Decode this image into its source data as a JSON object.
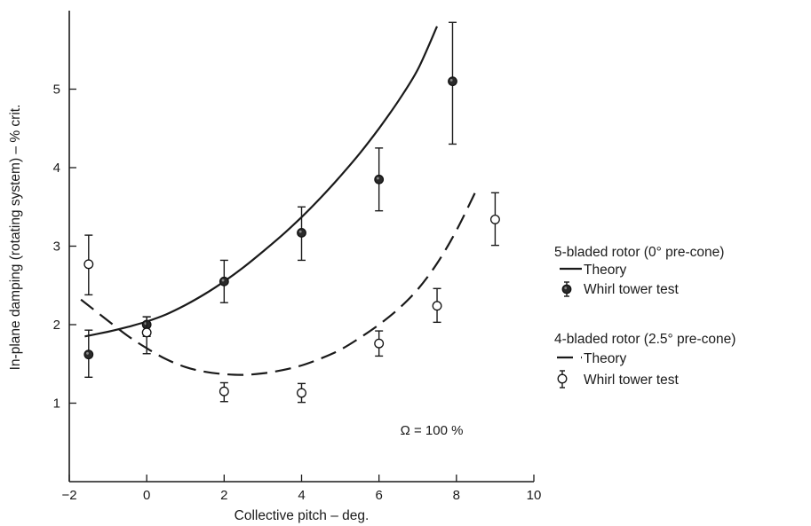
{
  "chart_data": {
    "type": "scatter",
    "title": "",
    "xlabel": "Collective pitch – deg.",
    "ylabel": "In-plane damping (rotating system) – % crit.",
    "xlim": [
      -2,
      10
    ],
    "ylim": [
      0,
      6
    ],
    "xticks": [
      -2,
      0,
      2,
      4,
      6,
      8,
      10
    ],
    "yticks": [
      1,
      2,
      3,
      4,
      5
    ],
    "grid": false,
    "legend_position": "right",
    "annotation": "Ω = 100 %",
    "legend_groups": [
      {
        "title": "5-bladed rotor (0° pre-cone)",
        "theory_label": "Theory",
        "test_label": "Whirl tower test"
      },
      {
        "title": "4-bladed rotor (2.5° pre-cone)",
        "theory_label": "Theory",
        "test_label": "Whirl tower test"
      }
    ],
    "series": [
      {
        "name": "5-bladed rotor (0° pre-cone) – Theory",
        "style": "solid-line",
        "x": [
          -1.6,
          -1.0,
          -0.5,
          0,
          0.5,
          1,
          1.5,
          2,
          2.5,
          3,
          3.5,
          4,
          4.5,
          5,
          5.5,
          6,
          6.5,
          7,
          7.5
        ],
        "y": [
          1.85,
          1.91,
          1.97,
          2.04,
          2.13,
          2.25,
          2.39,
          2.55,
          2.73,
          2.93,
          3.14,
          3.37,
          3.62,
          3.89,
          4.18,
          4.5,
          4.85,
          5.25,
          5.8
        ]
      },
      {
        "name": "5-bladed rotor (0° pre-cone) – Whirl tower test",
        "style": "filled-circle",
        "x": [
          -1.5,
          0,
          2,
          4,
          6,
          7.9
        ],
        "y": [
          1.62,
          2.0,
          2.55,
          3.17,
          3.85,
          5.1
        ],
        "err_low": [
          1.33,
          1.85,
          2.28,
          2.82,
          3.45,
          4.3
        ],
        "err_high": [
          1.93,
          2.1,
          2.82,
          3.5,
          4.25,
          5.85
        ]
      },
      {
        "name": "4-bladed rotor (2.5° pre-cone) – Theory",
        "style": "dashed-line",
        "x": [
          -1.7,
          -1.0,
          -0.5,
          0,
          0.5,
          1,
          1.5,
          2,
          2.5,
          3,
          3.5,
          4,
          4.5,
          5,
          5.5,
          6,
          6.5,
          7,
          7.5,
          8,
          8.5
        ],
        "y": [
          2.32,
          2.05,
          1.86,
          1.7,
          1.56,
          1.46,
          1.4,
          1.37,
          1.36,
          1.38,
          1.42,
          1.48,
          1.57,
          1.68,
          1.83,
          2.0,
          2.2,
          2.45,
          2.78,
          3.2,
          3.7
        ]
      },
      {
        "name": "4-bladed rotor (2.5° pre-cone) – Whirl tower test",
        "style": "open-circle",
        "x": [
          -1.5,
          0,
          2,
          4,
          6,
          7.5,
          9
        ],
        "y": [
          2.77,
          1.9,
          1.15,
          1.13,
          1.76,
          2.24,
          3.34
        ],
        "err_low": [
          2.38,
          1.63,
          1.02,
          1.01,
          1.6,
          2.03,
          3.01
        ],
        "err_high": [
          3.14,
          2.1,
          1.26,
          1.25,
          1.92,
          2.46,
          3.68
        ]
      }
    ]
  }
}
